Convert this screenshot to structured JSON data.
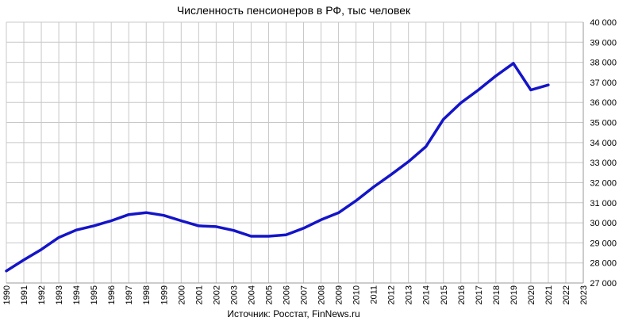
{
  "chart_data": {
    "type": "line",
    "title": "Численность пенсионеров в РФ, тыс человек",
    "source": "Источник: Росстат, FinNews.ru",
    "x": [
      1990,
      1991,
      1992,
      1993,
      1994,
      1995,
      1996,
      1997,
      1998,
      1999,
      2000,
      2001,
      2002,
      2003,
      2004,
      2005,
      2006,
      2007,
      2008,
      2009,
      2010,
      2011,
      2012,
      2013,
      2014,
      2015,
      2016,
      2017,
      2018,
      2019,
      2020,
      2021
    ],
    "series": [
      {
        "values": [
          27600,
          28150,
          28670,
          29270,
          29640,
          29850,
          30100,
          30410,
          30510,
          30370,
          30100,
          29850,
          29810,
          29620,
          29330,
          29330,
          29400,
          29730,
          30150,
          30500,
          31100,
          31780,
          32400,
          33050,
          33800,
          35160,
          35980,
          36620,
          37320,
          37950,
          36620,
          36870
        ],
        "color": "#1414c8"
      }
    ],
    "xticks": [
      "1990",
      "1991",
      "1992",
      "1993",
      "1994",
      "1995",
      "1996",
      "1997",
      "1998",
      "1999",
      "2000",
      "2001",
      "2002",
      "2003",
      "2004",
      "2005",
      "2006",
      "2007",
      "2008",
      "2009",
      "2010",
      "2011",
      "2012",
      "2013",
      "2014",
      "2015",
      "2016",
      "2017",
      "2018",
      "2019",
      "2020",
      "2021",
      "2022",
      "2023"
    ],
    "yticks": [
      "27 000",
      "28 000",
      "29 000",
      "30 000",
      "31 000",
      "32 000",
      "33 000",
      "34 000",
      "35 000",
      "36 000",
      "37 000",
      "38 000",
      "39 000",
      "40 000"
    ],
    "xlim": [
      1990,
      2023
    ],
    "ylim": [
      27000,
      40000
    ],
    "grid": true,
    "yaxis_side": "right"
  }
}
